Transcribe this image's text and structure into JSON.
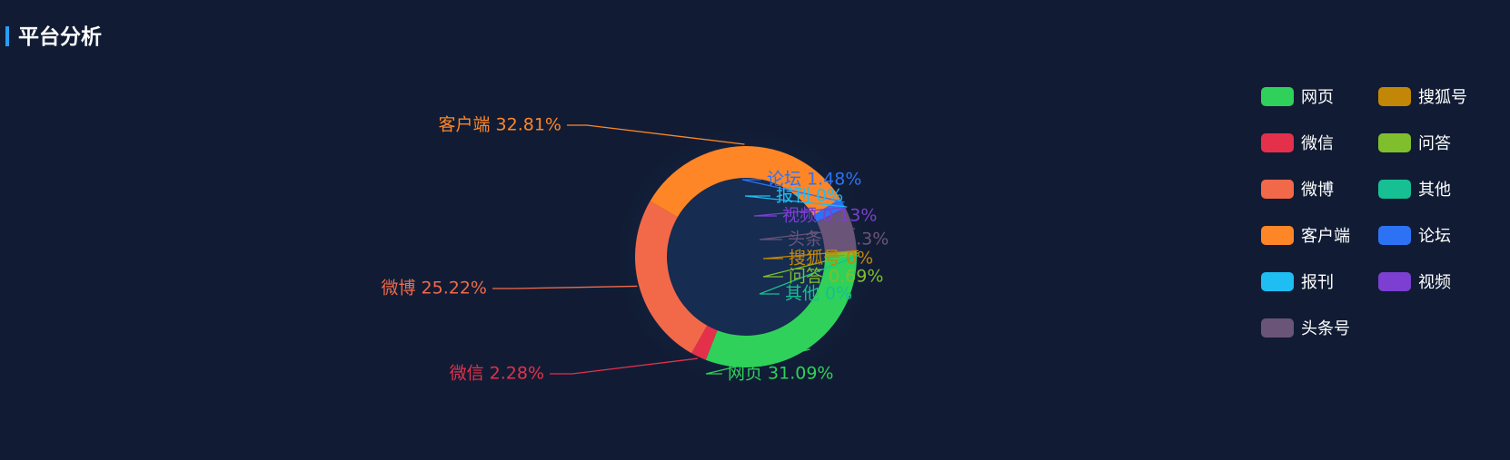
{
  "header": {
    "title": "平台分析"
  },
  "chart_data": {
    "type": "pie",
    "variant": "donut",
    "legend_position": "right",
    "slices": [
      {
        "name": "网页",
        "value": 31.09,
        "label": "网页 31.09%",
        "color": "#2fd15a"
      },
      {
        "name": "微信",
        "value": 2.28,
        "label": "微信 2.28%",
        "color": "#e5304c"
      },
      {
        "name": "微博",
        "value": 25.22,
        "label": "微博 25.22%",
        "color": "#f2694a"
      },
      {
        "name": "客户端",
        "value": 32.81,
        "label": "客户端 32.81%",
        "color": "#fe8627"
      },
      {
        "name": "论坛",
        "value": 1.48,
        "label": "论坛 1.48%",
        "color": "#2d72f5"
      },
      {
        "name": "报刊",
        "value": 0,
        "label": "报刊 0%",
        "color": "#1ebdf2"
      },
      {
        "name": "视频",
        "value": 0.13,
        "label": "视频 0.13%",
        "color": "#7c3fd1"
      },
      {
        "name": "头条号",
        "value": 6.3,
        "label": "头条号 6.3%",
        "color": "#6a5478"
      },
      {
        "name": "搜狐号",
        "value": 0,
        "label": "搜狐号 0%",
        "color": "#c38708"
      },
      {
        "name": "问答",
        "value": 0.69,
        "label": "问答 0.69%",
        "color": "#7fbf2e"
      },
      {
        "name": "其他",
        "value": 0,
        "label": "其他 0%",
        "color": "#16c093"
      }
    ]
  },
  "legend": {
    "items": [
      {
        "name": "网页",
        "color": "#2fd15a"
      },
      {
        "name": "搜狐号",
        "color": "#c38708"
      },
      {
        "name": "微信",
        "color": "#e5304c"
      },
      {
        "name": "问答",
        "color": "#7fbf2e"
      },
      {
        "name": "微博",
        "color": "#f2694a"
      },
      {
        "name": "其他",
        "color": "#16c093"
      },
      {
        "name": "客户端",
        "color": "#fe8627"
      },
      {
        "name": "论坛",
        "color": "#2d72f5"
      },
      {
        "name": "报刊",
        "color": "#1ebdf2"
      },
      {
        "name": "视频",
        "color": "#7c3fd1"
      },
      {
        "name": "头条号",
        "color": "#6a5478"
      }
    ]
  }
}
